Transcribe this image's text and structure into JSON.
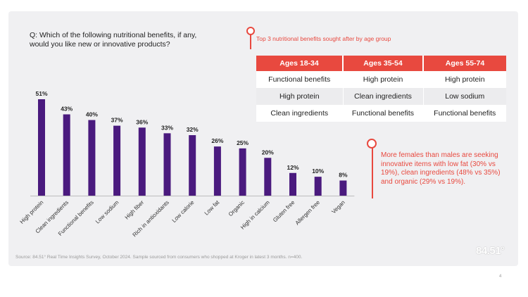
{
  "question": "Q: Which of the following nutritional benefits, if any, would you like new or innovative products?",
  "chart_data": {
    "type": "bar",
    "title": "",
    "xlabel": "",
    "ylabel": "",
    "ylim": [
      0,
      51
    ],
    "categories": [
      "High protein",
      "Clean ingredients",
      "Functional benefits",
      "Low sodium",
      "High fiber",
      "Rich in antioxidants",
      "Low calorie",
      "Low fat",
      "Organic",
      "High in calcium",
      "Gluten free",
      "Allergen free",
      "Vegan"
    ],
    "values": [
      51,
      43,
      40,
      37,
      36,
      33,
      32,
      26,
      25,
      20,
      12,
      10,
      8
    ],
    "value_labels": [
      "51%",
      "43%",
      "40%",
      "37%",
      "36%",
      "33%",
      "32%",
      "26%",
      "25%",
      "20%",
      "12%",
      "10%",
      "8%"
    ],
    "bar_color": "#4a1a7e"
  },
  "top3": {
    "title": "Top 3 nutritional benefits sought after by age group",
    "headers": [
      "Ages 18-34",
      "Ages 35-54",
      "Ages 55-74"
    ],
    "rows": [
      [
        "Functional benefits",
        "High protein",
        "High protein"
      ],
      [
        "High protein",
        "Clean ingredients",
        "Low sodium"
      ],
      [
        "Clean ingredients",
        "Functional benefits",
        "Functional benefits"
      ]
    ]
  },
  "note": "More females than males are seeking innovative items with low fat (30% vs 19%), clean ingredients (48% vs 35%) and organic (29% vs 19%).",
  "source": "Source: 84.51° Real Time Insights Survey, October 2024. Sample sourced from consumers who shopped at Kroger in latest 3 months. n=400.",
  "logo": "84.51°",
  "page_number": "4",
  "colors": {
    "accent": "#e8493f",
    "bar": "#4a1a7e",
    "panel": "#f0f0f2"
  }
}
